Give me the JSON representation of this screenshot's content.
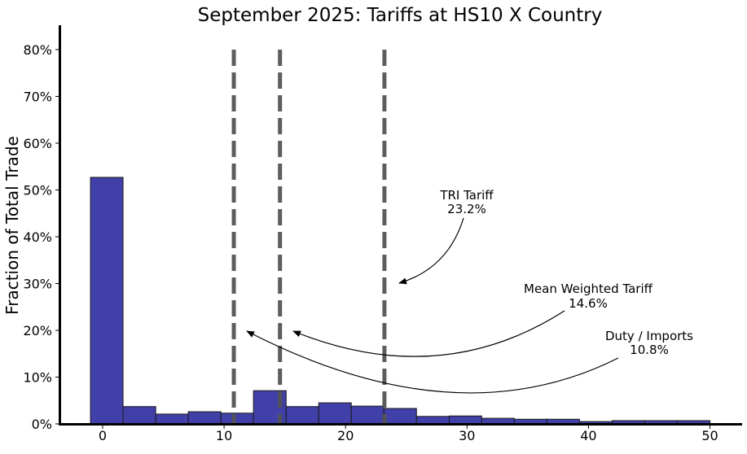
{
  "chart_data": {
    "type": "bar",
    "title": "September 2025: Tariffs at HS10 X Country",
    "xlabel": "",
    "ylabel": "Fraction of Total Trade",
    "xlim": [
      -3.5,
      52.5
    ],
    "ylim": [
      0,
      85
    ],
    "x_ticks": [
      0,
      10,
      20,
      30,
      40,
      50
    ],
    "y_ticks": [
      0,
      10,
      20,
      30,
      40,
      50,
      60,
      70,
      80
    ],
    "y_tick_labels": [
      "0%",
      "10%",
      "20%",
      "30%",
      "40%",
      "50%",
      "60%",
      "70%",
      "80%"
    ],
    "bin_edges": [
      -1.0,
      1.68,
      4.37,
      7.05,
      9.74,
      12.42,
      15.11,
      17.79,
      20.47,
      23.16,
      25.84,
      28.53,
      31.21,
      33.89,
      36.58,
      39.26,
      41.95,
      44.63,
      47.32,
      50.0
    ],
    "values": [
      52.7,
      3.7,
      2.1,
      2.6,
      2.3,
      7.1,
      3.7,
      4.5,
      3.8,
      3.3,
      1.6,
      1.7,
      1.2,
      1.0,
      1.0,
      0.5,
      0.7,
      0.7,
      0.7
    ],
    "bar_color": "#4040a8",
    "grid": false,
    "vlines": [
      {
        "name": "Duty / Imports",
        "x": 10.8,
        "label": "10.8%"
      },
      {
        "name": "Mean Weighted Tariff",
        "x": 14.6,
        "label": "14.6%"
      },
      {
        "name": "TRI Tariff",
        "x": 23.2,
        "label": "23.2%"
      }
    ],
    "vline_color": "#555555",
    "annotations": [
      {
        "line1": "TRI Tariff",
        "line2": "23.2%"
      },
      {
        "line1": "Mean Weighted Tariff",
        "line2": "14.6%"
      },
      {
        "line1": "Duty / Imports",
        "line2": "10.8%"
      }
    ]
  }
}
